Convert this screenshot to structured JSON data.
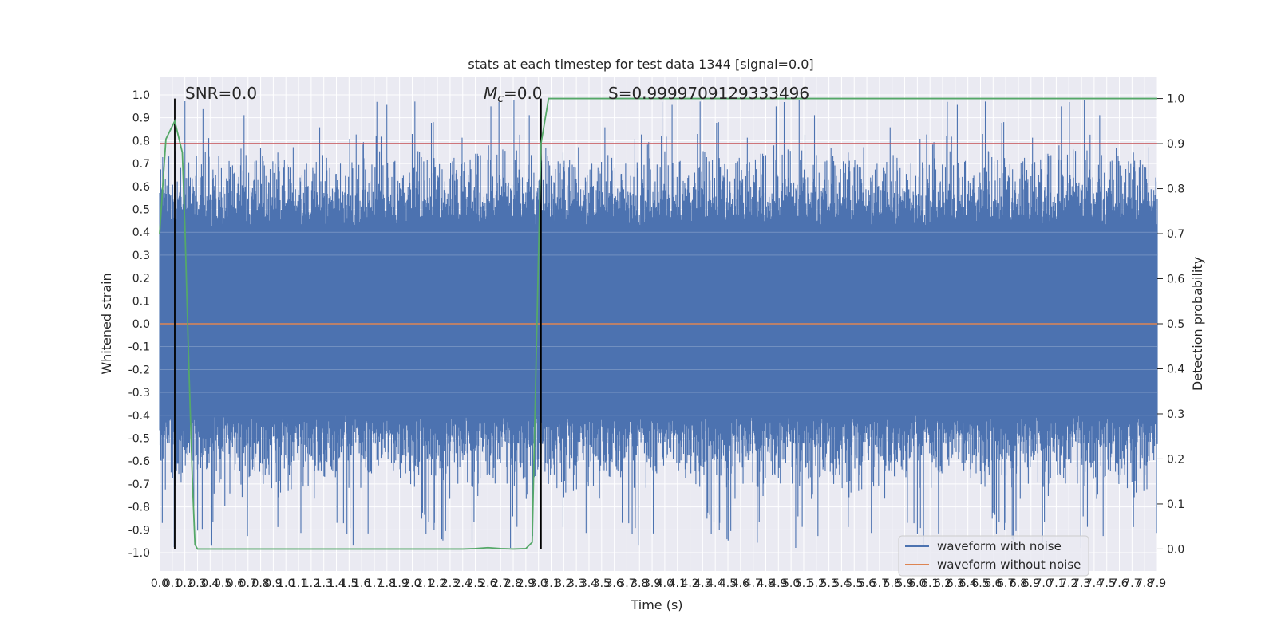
{
  "chart_data": {
    "type": "line",
    "title": "stats at each timestep for test data 1344 [signal=0.0]",
    "xlabel": "Time (s)",
    "ylabel": "Whitened strain",
    "ylabel_right": "Detection probability",
    "xlim": [
      0.0,
      7.9
    ],
    "ylim": [
      -1.08,
      1.08
    ],
    "ylim_right": [
      -0.0488,
      1.0488
    ],
    "x_ticks": [
      0.0,
      0.1,
      0.2,
      0.3,
      0.4,
      0.5,
      0.6,
      0.7,
      0.8,
      0.9,
      1.0,
      1.1,
      1.2,
      1.3,
      1.4,
      1.5,
      1.6,
      1.7,
      1.8,
      1.9,
      2.0,
      2.1,
      2.2,
      2.3,
      2.4,
      2.5,
      2.6,
      2.7,
      2.8,
      2.9,
      3.0,
      3.1,
      3.2,
      3.3,
      3.4,
      3.5,
      3.6,
      3.7,
      3.8,
      3.9,
      4.0,
      4.1,
      4.2,
      4.3,
      4.4,
      4.5,
      4.6,
      4.7,
      4.8,
      4.9,
      5.0,
      5.1,
      5.2,
      5.3,
      5.4,
      5.5,
      5.6,
      5.7,
      5.8,
      5.9,
      6.0,
      6.1,
      6.2,
      6.3,
      6.4,
      6.5,
      6.6,
      6.7,
      6.8,
      6.9,
      7.0,
      7.1,
      7.2,
      7.3,
      7.4,
      7.5,
      7.6,
      7.7,
      7.8,
      7.9
    ],
    "y_ticks": [
      "1.0",
      "0.9",
      "0.8",
      "0.7",
      "0.6",
      "0.5",
      "0.4",
      "0.3",
      "0.2",
      "0.1",
      "0.0",
      "-0.1",
      "-0.2",
      "-0.3",
      "-0.4",
      "-0.5",
      "-0.6",
      "-0.7",
      "-0.8",
      "-0.9",
      "-1.0"
    ],
    "y_ticks_right": [
      "1.0",
      "0.9",
      "0.8",
      "0.7",
      "0.6",
      "0.5",
      "0.4",
      "0.3",
      "0.2",
      "0.1",
      "0.0"
    ],
    "grid": true,
    "legend_position": "lower-right",
    "annotations": {
      "snr": "SNR=0.0",
      "mc_symbol": "M",
      "mc_subscript": "c",
      "mc_value": "=0.0",
      "s": "S=0.9999709129333496"
    },
    "vertical_lines_x": [
      0.12,
      3.02
    ],
    "threshold_line_y_right": 0.9,
    "series": [
      {
        "name": "waveform with noise",
        "color": "#4c72b0",
        "description": "dense whitened noise, centred at 0.0, mostly within about +/-0.6 with spikes reaching about +/-1.0",
        "envelope_peak": 1.0
      },
      {
        "name": "waveform without noise",
        "color": "#dd8452",
        "values_note": "flat at 0.0",
        "y": 0.0
      },
      {
        "name": "",
        "axis": "right",
        "color": "#55a868",
        "x": [
          0.0,
          0.05,
          0.12,
          0.18,
          0.2,
          0.23,
          0.26,
          0.28,
          0.3,
          1.5,
          2.4,
          2.5,
          2.6,
          2.7,
          2.8,
          2.9,
          2.95,
          2.98,
          3.02,
          3.08,
          3.1,
          7.9
        ],
        "y": [
          0.7,
          0.91,
          0.95,
          0.88,
          0.72,
          0.42,
          0.15,
          0.01,
          0.0,
          0.0,
          0.0,
          0.001,
          0.003,
          0.001,
          0.0,
          0.001,
          0.015,
          0.4,
          0.9,
          1.0,
          1.0,
          1.0
        ]
      },
      {
        "name": "",
        "axis": "right",
        "color": "#c44e52",
        "values_note": "horizontal threshold line",
        "y": 0.9
      }
    ],
    "colors": {
      "axes_bg": "#eaeaf2",
      "grid": "#ffffff",
      "noise": "#4c72b0",
      "clean": "#dd8452",
      "probability": "#55a868",
      "threshold": "#c44e52",
      "marker_line": "#000000"
    }
  }
}
